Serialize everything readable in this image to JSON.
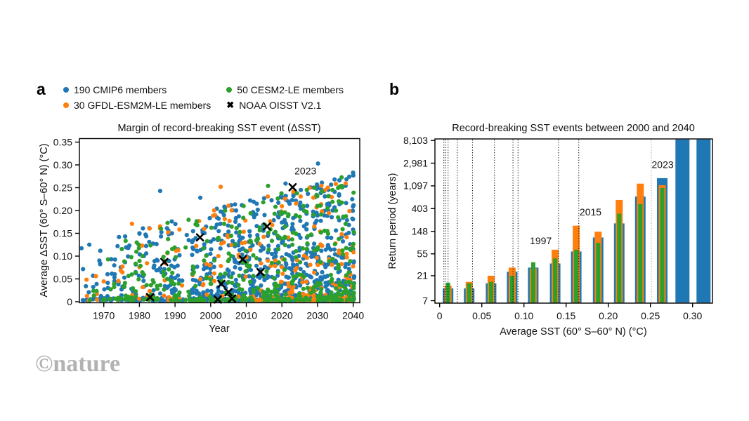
{
  "watermark": "©nature",
  "colors": {
    "cmip6_blue": "#1f77b4",
    "gfdl_orange": "#ff7f0e",
    "cesm2_green": "#2ca02c",
    "noaa_black": "#000000",
    "event_line_gray": "#9e9e9e",
    "axis_black": "#000000"
  },
  "legend": {
    "items": [
      {
        "label": "190 CMIP6 members",
        "marker": "dot",
        "color": "#1f77b4"
      },
      {
        "label": "30 GFDL-ESM2M-LE members",
        "marker": "dot",
        "color": "#ff7f0e"
      },
      {
        "label": "50 CESM2-LE members",
        "marker": "dot",
        "color": "#2ca02c"
      },
      {
        "label": "NOAA OISST V2.1",
        "marker": "x",
        "color": "#000000",
        "marker_char": "✖"
      }
    ]
  },
  "panel_a": {
    "label": "a",
    "title": "Margin of record-breaking SST event (ΔSST)",
    "xlabel": "Year",
    "ylabel": "Average ΔSST (60° S–60° N) (°C)"
  },
  "panel_b": {
    "label": "b",
    "title": "Record-breaking SST events between 2000 and 2040",
    "xlabel": "Average SST (60° S–60° N) (°C)",
    "ylabel": "Return period (years)"
  },
  "chart_data": [
    {
      "type": "scatter",
      "panel": "a",
      "title": "Margin of record-breaking SST event (ΔSST)",
      "xlabel": "Year",
      "ylabel": "Average ΔSST (60° S–60° N) (°C)",
      "xlim": [
        1963,
        2042
      ],
      "ylim": [
        0,
        0.35
      ],
      "xticks": [
        1970,
        1980,
        1990,
        2000,
        2010,
        2020,
        2030,
        2040
      ],
      "yticks": [
        0,
        0.05,
        0.1,
        0.15,
        0.2,
        0.25,
        0.3,
        0.35
      ],
      "ytick_labels": [
        "0",
        "0.05",
        "0.10",
        "0.15",
        "0.20",
        "0.25",
        "0.30",
        "0.35"
      ],
      "grid": false,
      "series": [
        {
          "name": "190 CMIP6 members",
          "color": "#1f77b4",
          "n_members": 190
        },
        {
          "name": "30 GFDL-ESM2M-LE members",
          "color": "#ff7f0e",
          "n_members": 30
        },
        {
          "name": "50 CESM2-LE members",
          "color": "#2ca02c",
          "n_members": 50
        },
        {
          "name": "NOAA OISST V2.1",
          "color": "#000000",
          "marker": "x",
          "points": [
            [
              1983,
              0.01
            ],
            [
              1987,
              0.087
            ],
            [
              1997,
              0.141
            ],
            [
              2002,
              0.005
            ],
            [
              2003,
              0.039
            ],
            [
              2005,
              0.021
            ],
            [
              2006,
              0.007
            ],
            [
              2009,
              0.093
            ],
            [
              2014,
              0.065
            ],
            [
              2015.8,
              0.165
            ],
            [
              2023,
              0.251
            ]
          ]
        }
      ],
      "annotations": [
        {
          "text": "2023",
          "marker": [
            2023,
            0.251
          ],
          "label": [
            2026.6,
            0.279
          ]
        }
      ],
      "scatter_generation": {
        "seed": 20230704,
        "year_start": 1964,
        "year_end": 2040,
        "base_density_start": 5,
        "density_per_year": 0.45,
        "sparse_years": {
          "1992": 4,
          "1993": 3,
          "1994": 6
        },
        "envelope_start_max": 0.13,
        "envelope_end_max": 0.28,
        "shape_exponent": 2.6,
        "color_fractions": {
          "orange": 0.15,
          "green": 0.27,
          "blue": 0.58
        },
        "outliers": [
          [
            1978,
            0.171,
            "orange"
          ],
          [
            1986,
            0.243,
            "blue"
          ],
          [
            1997,
            0.228,
            "blue"
          ],
          [
            2003,
            0.252,
            "orange"
          ],
          [
            2012,
            0.219,
            "blue"
          ],
          [
            2016,
            0.254,
            "green"
          ],
          [
            2021,
            0.259,
            "blue"
          ],
          [
            2030,
            0.303,
            "blue"
          ],
          [
            2036,
            0.252,
            "green"
          ],
          [
            2040,
            0.283,
            "blue"
          ]
        ]
      }
    },
    {
      "type": "bar",
      "panel": "b",
      "title": "Record-breaking SST events between 2000 and 2040",
      "xlabel": "Average SST (60° S–60° N) (°C)",
      "ylabel": "Return period (years)",
      "yscale": "log",
      "ylim": [
        6.3,
        8700
      ],
      "yticks": [
        7,
        21,
        55,
        148,
        403,
        1097,
        2981,
        8103
      ],
      "ytick_labels": [
        "7",
        "21",
        "55",
        "148",
        "403",
        "1,097",
        "2,981",
        "8,103"
      ],
      "xticks": [
        0,
        0.05,
        0.1,
        0.15,
        0.2,
        0.25,
        0.3
      ],
      "xtick_labels": [
        "0",
        "0.05",
        "0.10",
        "0.15",
        "0.20",
        "0.25",
        "0.30"
      ],
      "x": [
        0.01,
        0.035,
        0.061,
        0.086,
        0.111,
        0.137,
        0.162,
        0.188,
        0.213,
        0.238,
        0.264,
        0.288,
        0.313
      ],
      "series": [
        {
          "name": "190 CMIP6 members",
          "color": "#1f77b4",
          "values": [
            12,
            12,
            15,
            25,
            30,
            36,
            61,
            113,
            210,
            685,
            1540,
            12000,
            12000
          ]
        },
        {
          "name": "30 GFDL-ESM2M-LE members",
          "color": "#ff7f0e",
          "values": [
            13.5,
            16,
            21,
            30,
            29,
            66,
            190,
            146,
            590,
            1210,
            1130,
            null,
            null
          ]
        },
        {
          "name": "50 CESM2-LE members",
          "color": "#2ca02c",
          "values": [
            15.5,
            15,
            16,
            21,
            38,
            45,
            66,
            89,
            323,
            493,
            1000,
            null,
            null
          ]
        }
      ],
      "event_lines": {
        "black": [
          0.005,
          0.007,
          0.01,
          0.021,
          0.039,
          0.065,
          0.087,
          0.093,
          0.141,
          0.165
        ],
        "gray": [
          0.251
        ]
      },
      "annotations": [
        {
          "text": "1997",
          "label": [
            0.12,
            84
          ]
        },
        {
          "text": "2015",
          "label": [
            0.179,
            300
          ]
        },
        {
          "text": "2023",
          "label": [
            0.2645,
            2400
          ]
        }
      ]
    }
  ]
}
